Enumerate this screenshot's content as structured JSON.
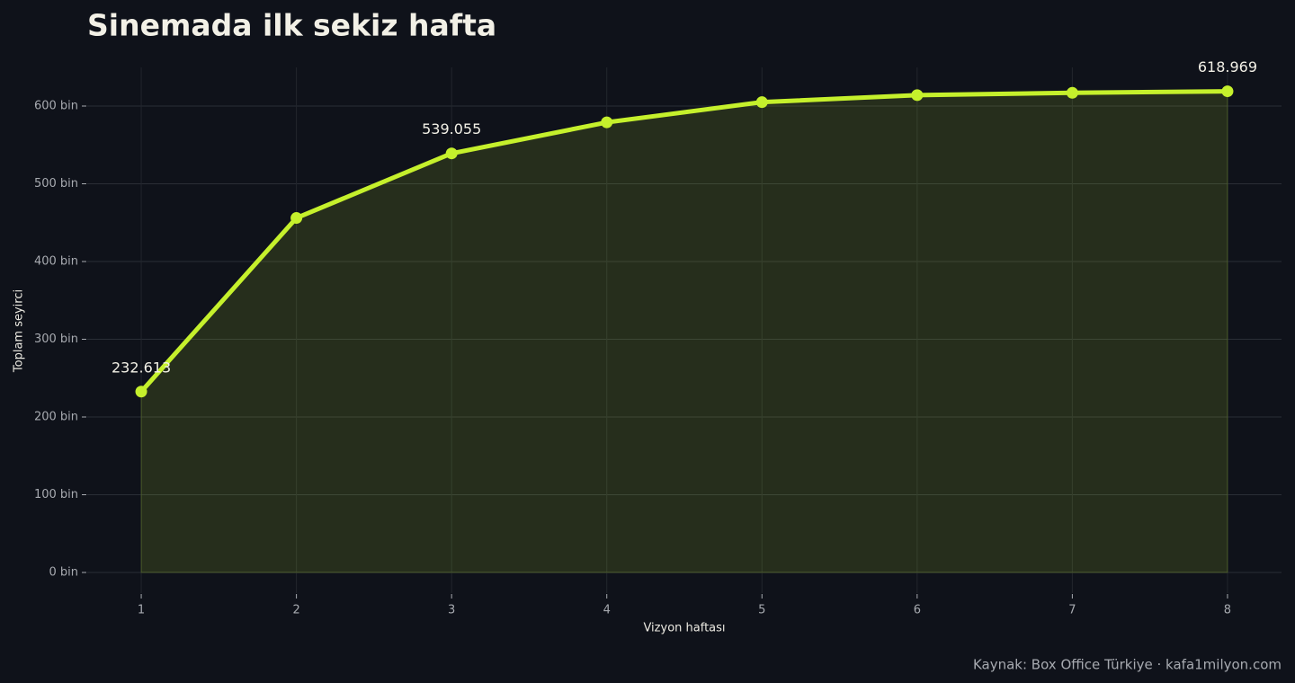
{
  "chart_data": {
    "type": "line",
    "title": "Sinemada ilk sekiz hafta",
    "x_label": "Vizyon haftası",
    "y_label": "Toplam seyirci",
    "source": "Kaynak: Box Office Türkiye · kafa1milyon.com",
    "x": [
      1,
      2,
      3,
      4,
      5,
      6,
      7,
      8
    ],
    "series": [
      {
        "name": "Toplam seyirci",
        "color": "#c5f02c",
        "values": [
          232613,
          456000,
          539055,
          579000,
          605000,
          614000,
          617000,
          618969
        ],
        "value_labels": [
          "232.613",
          null,
          "539.055",
          null,
          null,
          null,
          null,
          "618.969"
        ]
      }
    ],
    "xlim": [
      0.652,
      8.348
    ],
    "ylim": [
      -26600,
      649700
    ],
    "xticks": [
      1,
      2,
      3,
      4,
      5,
      6,
      7,
      8
    ],
    "yticks": [
      {
        "value": 0,
        "label": "0 bin"
      },
      {
        "value": 100000,
        "label": "100 bin"
      },
      {
        "value": 200000,
        "label": "200 bin"
      },
      {
        "value": 300000,
        "label": "300 bin"
      },
      {
        "value": 400000,
        "label": "400 bin"
      },
      {
        "value": 500000,
        "label": "500 bin"
      },
      {
        "value": 600000,
        "label": "600 bin"
      }
    ],
    "grid": true,
    "area_fill": true
  }
}
